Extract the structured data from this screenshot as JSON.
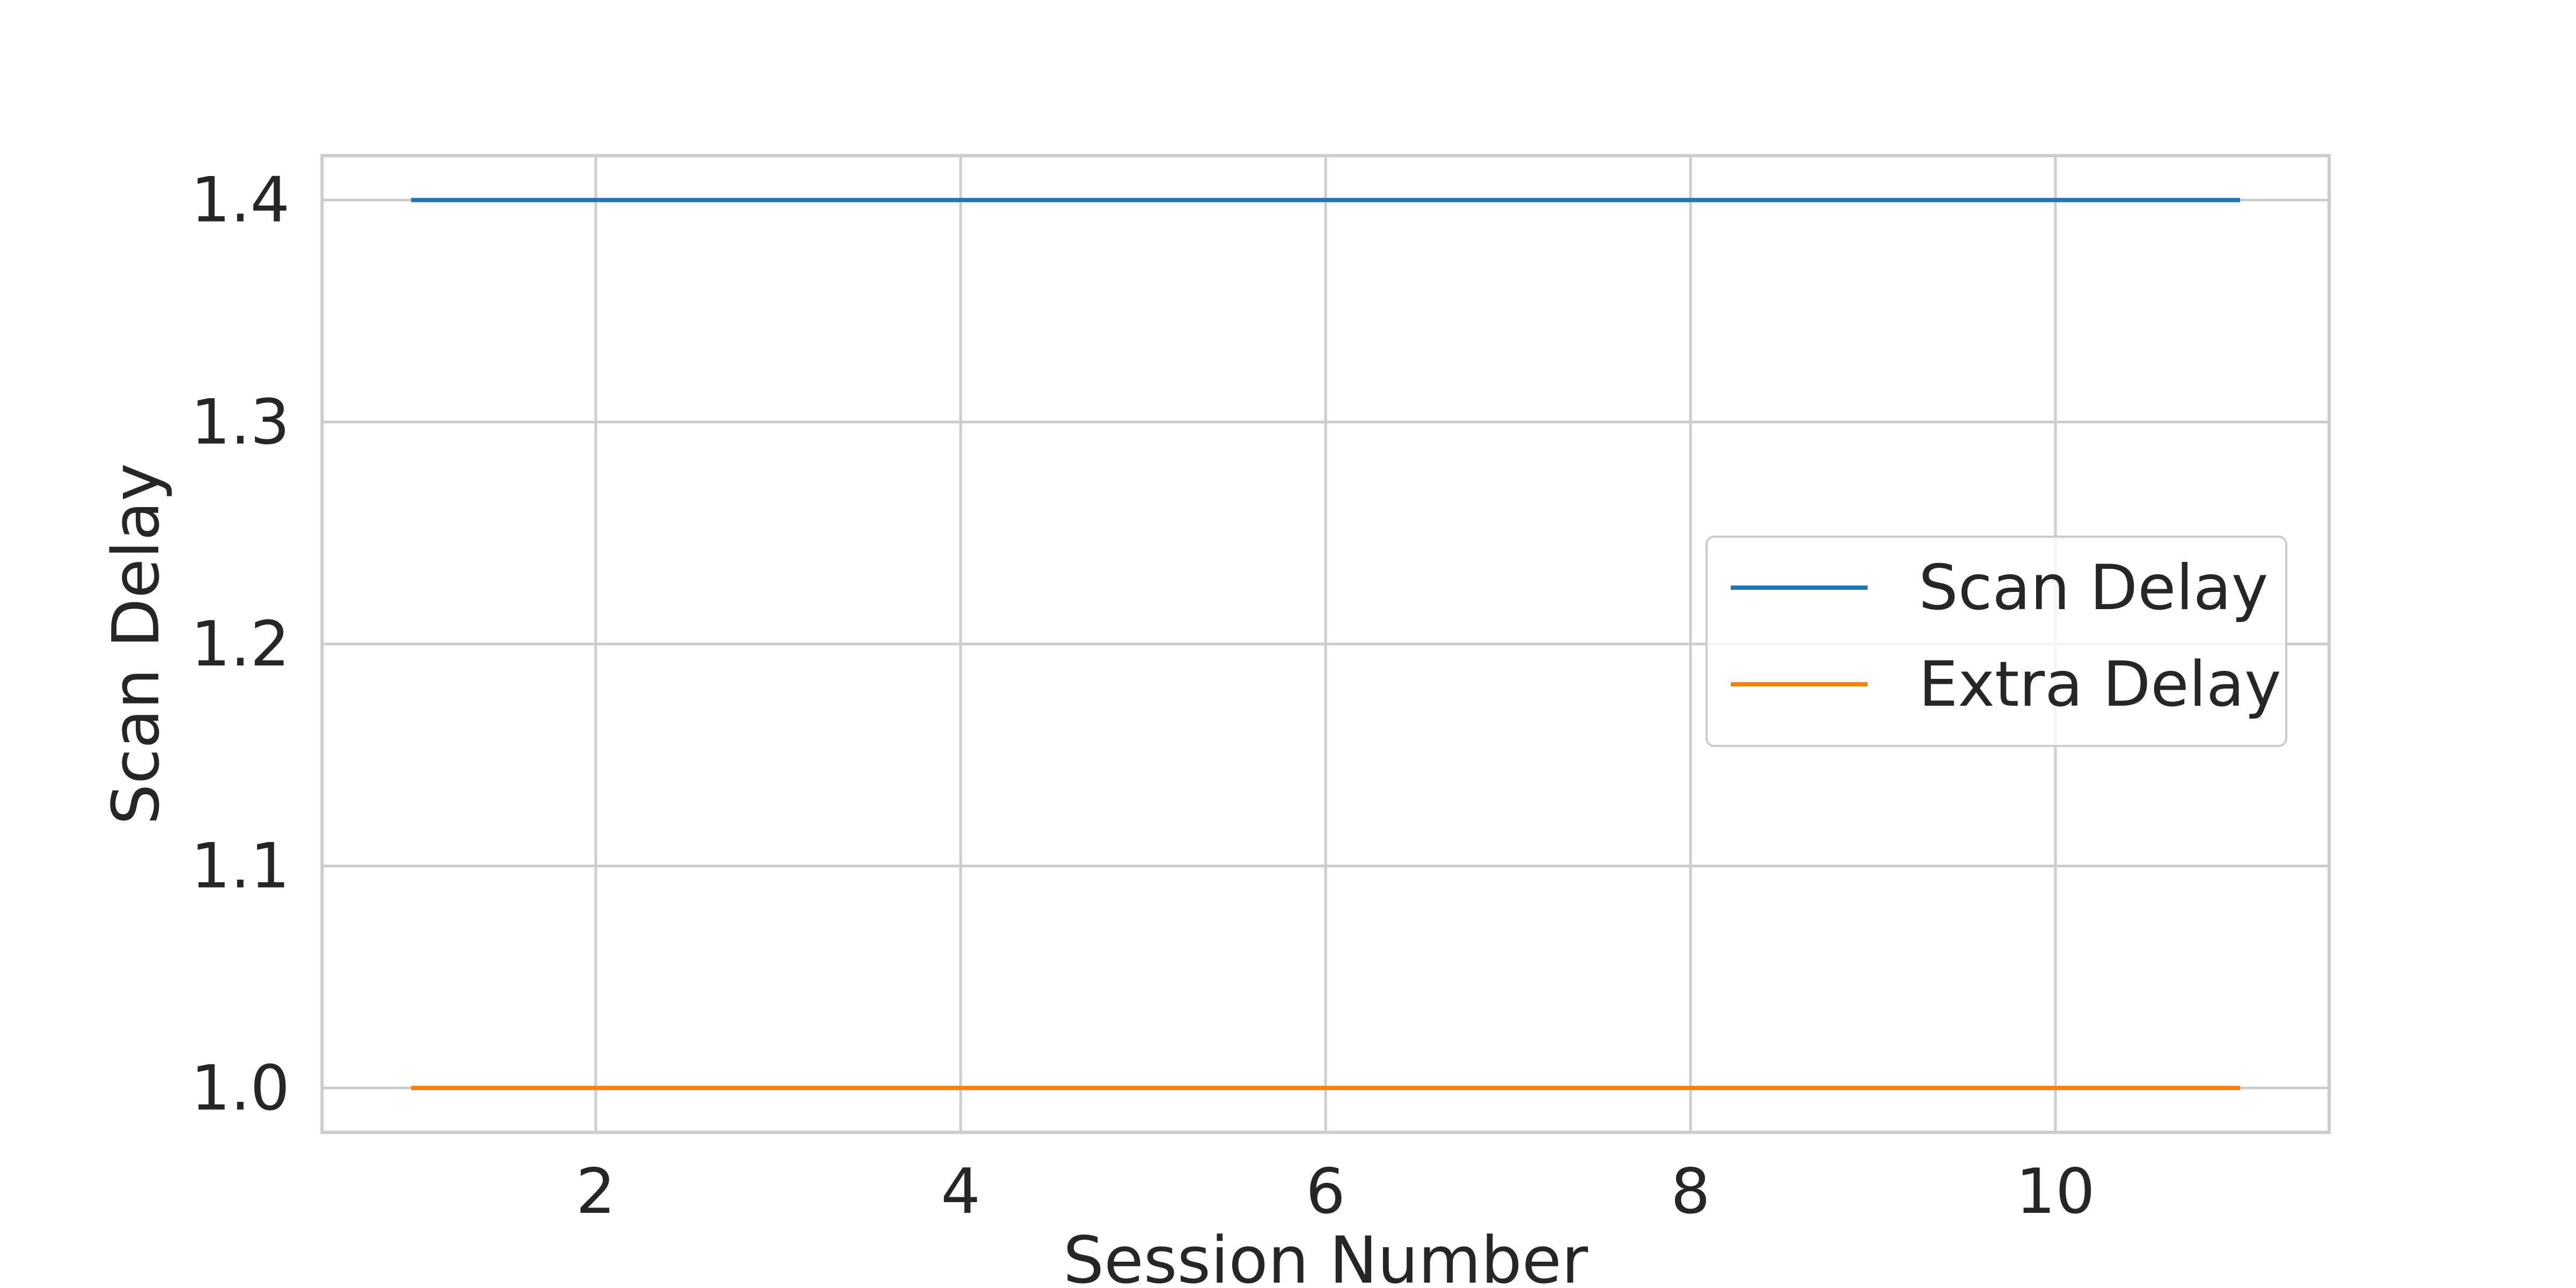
{
  "chart_data": {
    "type": "line",
    "title": "",
    "xlabel": "Session Number",
    "ylabel": "Scan Delay",
    "x": [
      1,
      2,
      3,
      4,
      5,
      6,
      7,
      8,
      9,
      10,
      11
    ],
    "series": [
      {
        "name": "Scan Delay",
        "values": [
          1.4,
          1.4,
          1.4,
          1.4,
          1.4,
          1.4,
          1.4,
          1.4,
          1.4,
          1.4,
          1.4
        ],
        "color": "#1f77b4"
      },
      {
        "name": "Extra Delay",
        "values": [
          1.0,
          1.0,
          1.0,
          1.0,
          1.0,
          1.0,
          1.0,
          1.0,
          1.0,
          1.0,
          1.0
        ],
        "color": "#ff7f0e"
      }
    ],
    "xlim": [
      0.5,
      11.5
    ],
    "ylim": [
      0.98,
      1.42
    ],
    "xticks": [
      2,
      4,
      6,
      8,
      10
    ],
    "xtick_labels": [
      "2",
      "4",
      "6",
      "8",
      "10"
    ],
    "yticks": [
      1.0,
      1.1,
      1.2,
      1.3,
      1.4
    ],
    "ytick_labels": [
      "1.0",
      "1.1",
      "1.2",
      "1.3",
      "1.4"
    ],
    "grid": true,
    "legend": "center-right"
  }
}
